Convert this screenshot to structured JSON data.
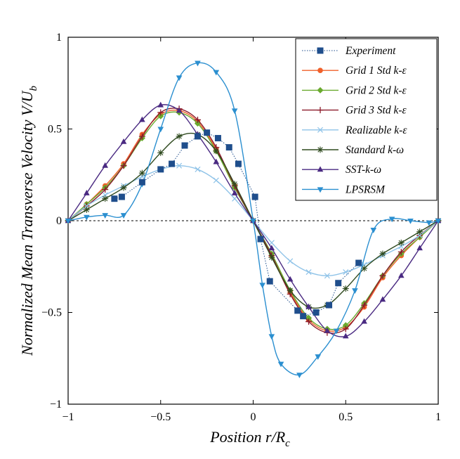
{
  "chart_data": {
    "type": "line",
    "title": "",
    "xlabel": "Position r/R_c",
    "ylabel": "Normalized Mean Transverse Velocity V/U_b",
    "xlim": [
      -1,
      1
    ],
    "ylim": [
      -1,
      1
    ],
    "xticks": [
      -1,
      -0.5,
      0,
      0.5,
      1
    ],
    "yticks": [
      -1,
      -0.5,
      0,
      0.5,
      1
    ],
    "xtick_labels": [
      "−1",
      "−0.5",
      "0",
      "0.5",
      "1"
    ],
    "ytick_labels": [
      "−1",
      "−0.5",
      "0",
      "0.5",
      "1"
    ],
    "zero_line": true,
    "grid": false,
    "legend_position": "top-right",
    "series": [
      {
        "name": "Experiment",
        "color": "#1f4e8c",
        "line_style": "dotted",
        "marker": "square",
        "x": [
          -0.75,
          -0.71,
          -0.6,
          -0.5,
          -0.44,
          -0.37,
          -0.3,
          -0.25,
          -0.19,
          -0.13,
          -0.08,
          0.01,
          0.04,
          0.09,
          0.24,
          0.27,
          0.34,
          0.41,
          0.46,
          0.57
        ],
        "y": [
          0.12,
          0.13,
          0.21,
          0.28,
          0.31,
          0.41,
          0.46,
          0.48,
          0.45,
          0.4,
          0.31,
          0.13,
          -0.1,
          -0.33,
          -0.49,
          -0.52,
          -0.5,
          -0.46,
          -0.34,
          -0.23
        ]
      },
      {
        "name": "Grid 1 Std k-ε",
        "color": "#f0602a",
        "line_style": "solid",
        "marker": "circle",
        "x": [
          -1,
          -0.9,
          -0.8,
          -0.7,
          -0.6,
          -0.5,
          -0.4,
          -0.3,
          -0.2,
          -0.1,
          0,
          0.1,
          0.2,
          0.3,
          0.4,
          0.5,
          0.6,
          0.7,
          0.8,
          0.9,
          1
        ],
        "y": [
          0.0,
          0.09,
          0.19,
          0.31,
          0.47,
          0.58,
          0.6,
          0.54,
          0.39,
          0.19,
          0.0,
          -0.19,
          -0.39,
          -0.54,
          -0.6,
          -0.58,
          -0.47,
          -0.31,
          -0.19,
          -0.09,
          0.0
        ]
      },
      {
        "name": "Grid 2 Std k-ε",
        "color": "#6aaa2e",
        "line_style": "solid",
        "marker": "diamond",
        "x": [
          -1,
          -0.9,
          -0.8,
          -0.7,
          -0.6,
          -0.5,
          -0.4,
          -0.3,
          -0.2,
          -0.1,
          0,
          0.1,
          0.2,
          0.3,
          0.4,
          0.5,
          0.6,
          0.7,
          0.8,
          0.9,
          1
        ],
        "y": [
          0.0,
          0.09,
          0.18,
          0.3,
          0.45,
          0.57,
          0.59,
          0.53,
          0.38,
          0.18,
          0.0,
          -0.18,
          -0.38,
          -0.53,
          -0.59,
          -0.57,
          -0.45,
          -0.3,
          -0.18,
          -0.09,
          0.0
        ]
      },
      {
        "name": "Grid 3 Std k-ε",
        "color": "#8b1a2a",
        "line_style": "solid",
        "marker": "plus",
        "x": [
          -1,
          -0.9,
          -0.8,
          -0.7,
          -0.6,
          -0.5,
          -0.4,
          -0.3,
          -0.2,
          -0.1,
          0,
          0.1,
          0.2,
          0.3,
          0.4,
          0.5,
          0.6,
          0.7,
          0.8,
          0.9,
          1
        ],
        "y": [
          0.0,
          0.08,
          0.17,
          0.3,
          0.46,
          0.59,
          0.61,
          0.55,
          0.4,
          0.19,
          0.0,
          -0.19,
          -0.4,
          -0.55,
          -0.61,
          -0.59,
          -0.46,
          -0.3,
          -0.17,
          -0.08,
          0.0
        ]
      },
      {
        "name": "Realizable k-ε",
        "color": "#8fc3e8",
        "line_style": "solid",
        "marker": "x",
        "x": [
          -1,
          -0.9,
          -0.8,
          -0.7,
          -0.6,
          -0.5,
          -0.4,
          -0.3,
          -0.2,
          -0.1,
          0,
          0.1,
          0.2,
          0.3,
          0.4,
          0.5,
          0.6,
          0.7,
          0.8,
          0.9,
          1
        ],
        "y": [
          0.0,
          0.08,
          0.14,
          0.19,
          0.24,
          0.28,
          0.3,
          0.28,
          0.22,
          0.12,
          0.0,
          -0.12,
          -0.22,
          -0.28,
          -0.3,
          -0.28,
          -0.24,
          -0.19,
          -0.14,
          -0.08,
          0.0
        ]
      },
      {
        "name": "Standard k-ω",
        "color": "#2f4a1f",
        "line_style": "solid",
        "marker": "star",
        "x": [
          -1,
          -0.9,
          -0.8,
          -0.7,
          -0.6,
          -0.5,
          -0.4,
          -0.3,
          -0.2,
          -0.1,
          0,
          0.1,
          0.2,
          0.3,
          0.4,
          0.5,
          0.6,
          0.7,
          0.8,
          0.9,
          1
        ],
        "y": [
          0.0,
          0.06,
          0.12,
          0.18,
          0.26,
          0.37,
          0.46,
          0.47,
          0.38,
          0.2,
          0.0,
          -0.2,
          -0.38,
          -0.47,
          -0.46,
          -0.37,
          -0.26,
          -0.18,
          -0.12,
          -0.06,
          0.0
        ]
      },
      {
        "name": "SST-k-ω",
        "color": "#4a2a82",
        "line_style": "solid",
        "marker": "triangle-up",
        "x": [
          -1,
          -0.9,
          -0.8,
          -0.7,
          -0.6,
          -0.5,
          -0.4,
          -0.3,
          -0.2,
          -0.1,
          0,
          0.1,
          0.2,
          0.3,
          0.4,
          0.5,
          0.6,
          0.7,
          0.8,
          0.9,
          1
        ],
        "y": [
          0.0,
          0.15,
          0.3,
          0.43,
          0.55,
          0.63,
          0.6,
          0.47,
          0.32,
          0.15,
          0.0,
          -0.15,
          -0.32,
          -0.47,
          -0.6,
          -0.63,
          -0.55,
          -0.43,
          -0.3,
          -0.15,
          0.0
        ]
      },
      {
        "name": "LPSRSM",
        "color": "#2b8fd0",
        "line_style": "solid",
        "marker": "triangle-down",
        "x": [
          -1,
          -0.9,
          -0.8,
          -0.7,
          -0.6,
          -0.5,
          -0.4,
          -0.3,
          -0.2,
          -0.1,
          0,
          0.05,
          0.1,
          0.15,
          0.25,
          0.35,
          0.45,
          0.55,
          0.65,
          0.75,
          0.85,
          0.95,
          1
        ],
        "y": [
          0.0,
          0.02,
          0.03,
          0.03,
          0.2,
          0.5,
          0.78,
          0.86,
          0.81,
          0.6,
          0.0,
          -0.35,
          -0.63,
          -0.78,
          -0.84,
          -0.74,
          -0.6,
          -0.38,
          -0.05,
          0.01,
          0.0,
          -0.01,
          0.0
        ]
      }
    ]
  }
}
